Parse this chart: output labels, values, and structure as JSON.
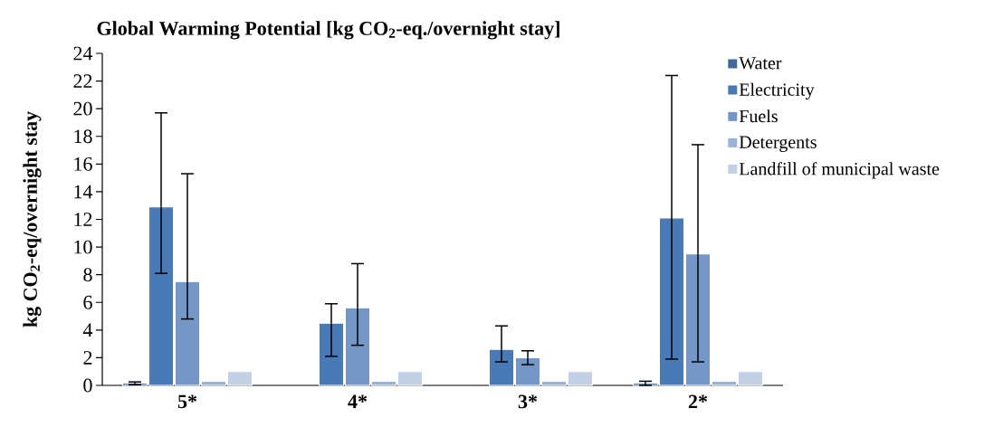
{
  "chart_data": {
    "type": "bar",
    "title": "Global Warming Potential [kg CO$_{2}$-eq./overnight stay]",
    "ylabel": "kg CO$_{2}$-eq/overnight stay",
    "categories": [
      "5*",
      "4*",
      "3*",
      "2*"
    ],
    "series": [
      {
        "name": "Water",
        "color": "#41689c",
        "values": [
          0.15,
          null,
          null,
          0.15
        ],
        "errors": [
          0.1,
          null,
          null,
          0.15
        ]
      },
      {
        "name": "Electricity",
        "color": "#4a7ab5",
        "values": [
          12.9,
          4.5,
          2.6,
          12.1
        ],
        "errors": [
          [
            8.1,
            19.7
          ],
          [
            2.1,
            5.9
          ],
          [
            1.7,
            4.3
          ],
          [
            1.9,
            22.4
          ]
        ]
      },
      {
        "name": "Fuels",
        "color": "#7597c8",
        "values": [
          7.5,
          5.6,
          2.0,
          9.5
        ],
        "errors": [
          [
            4.8,
            15.3
          ],
          [
            2.9,
            8.8
          ],
          [
            1.5,
            2.5
          ],
          [
            1.7,
            17.4
          ]
        ]
      },
      {
        "name": "Detergents",
        "color": "#9bb2d7",
        "values": [
          0.3,
          0.3,
          0.3,
          0.3
        ]
      },
      {
        "name": "Landfill of municipal waste",
        "color": "#c2cfe4",
        "values": [
          1.0,
          1.0,
          1.0,
          1.0
        ]
      }
    ],
    "ylim": [
      0,
      24
    ],
    "yticks": [
      0,
      2,
      4,
      6,
      8,
      10,
      12,
      14,
      16,
      18,
      20,
      22,
      24
    ],
    "grid": false,
    "legend": "right"
  }
}
